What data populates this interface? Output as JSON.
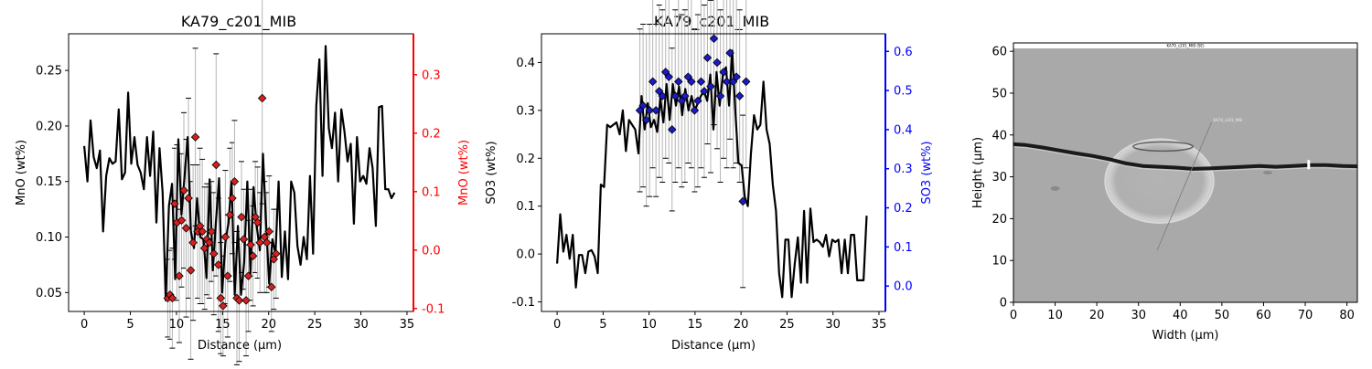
{
  "chart_data": [
    {
      "type": "line",
      "title": "KA79_c201_MIB",
      "xlabel": "Distance (µm)",
      "ylabel": "MnO (wt%)",
      "y2label": "MnO (wt%)",
      "xlim": [
        -1.7,
        35.7
      ],
      "ylim": [
        0.033,
        0.283
      ],
      "y2lim": [
        -0.105,
        0.37
      ],
      "xticks": [
        0,
        5,
        10,
        15,
        20,
        25,
        30,
        35
      ],
      "yticks": [
        0.05,
        0.1,
        0.15,
        0.2,
        0.25
      ],
      "y2ticks": [
        -0.1,
        0.0,
        0.1,
        0.2,
        0.3
      ],
      "line_color": "#000000",
      "marker_color": "#d62020",
      "axis2_color": "#ff0000",
      "line": {
        "x": [
          0,
          0.34,
          0.68,
          1.02,
          1.36,
          1.7,
          2.04,
          2.38,
          2.72,
          3.06,
          3.4,
          3.74,
          4.08,
          4.42,
          4.76,
          5.1,
          5.44,
          5.78,
          6.12,
          6.46,
          6.8,
          7.14,
          7.48,
          7.82,
          8.16,
          8.5,
          8.84,
          9.18,
          9.52,
          9.86,
          10.2,
          10.54,
          10.88,
          11.22,
          11.56,
          11.9,
          12.24,
          12.58,
          12.92,
          13.26,
          13.6,
          13.94,
          14.28,
          14.62,
          14.96,
          15.3,
          15.64,
          15.98,
          16.32,
          16.66,
          17.0,
          17.34,
          17.68,
          18.02,
          18.36,
          18.7,
          19.04,
          19.38,
          19.72,
          20.06,
          20.4,
          20.74,
          21.08,
          21.42,
          21.76,
          22.1,
          22.44,
          22.78,
          23.12,
          23.46,
          23.8,
          24.14,
          24.48,
          24.82,
          25.16,
          25.5,
          25.84,
          26.18,
          26.52,
          26.86,
          27.2,
          27.54,
          27.88,
          28.22,
          28.56,
          28.9,
          29.24,
          29.58,
          29.92,
          30.26,
          30.6,
          30.94,
          31.28,
          31.62,
          31.96,
          32.3,
          32.64,
          32.98,
          33.32,
          33.66
        ],
        "y": [
          0.182,
          0.15,
          0.205,
          0.172,
          0.162,
          0.178,
          0.105,
          0.155,
          0.171,
          0.166,
          0.168,
          0.215,
          0.152,
          0.158,
          0.23,
          0.166,
          0.19,
          0.165,
          0.158,
          0.143,
          0.19,
          0.155,
          0.195,
          0.113,
          0.18,
          0.14,
          0.043,
          0.128,
          0.148,
          0.062,
          0.188,
          0.12,
          0.155,
          0.19,
          0.105,
          0.09,
          0.135,
          0.1,
          0.098,
          0.063,
          0.152,
          0.07,
          0.114,
          0.153,
          0.05,
          0.095,
          0.113,
          0.15,
          0.048,
          0.11,
          0.048,
          0.077,
          0.15,
          0.067,
          0.145,
          0.11,
          0.088,
          0.175,
          0.112,
          0.058,
          0.098,
          0.085,
          0.15,
          0.064,
          0.105,
          0.062,
          0.15,
          0.14,
          0.092,
          0.075,
          0.1,
          0.08,
          0.155,
          0.085,
          0.218,
          0.26,
          0.155,
          0.272,
          0.198,
          0.18,
          0.212,
          0.15,
          0.215,
          0.195,
          0.168,
          0.184,
          0.112,
          0.19,
          0.15,
          0.155,
          0.148,
          0.18,
          0.162,
          0.11,
          0.217,
          0.218,
          0.143,
          0.143,
          0.135,
          0.14
        ]
      },
      "points": {
        "x": [
          9.05,
          9.3,
          9.55,
          9.8,
          10.05,
          10.3,
          10.55,
          10.8,
          11.05,
          11.3,
          11.55,
          11.8,
          12.05,
          12.3,
          12.55,
          12.8,
          13.05,
          13.3,
          13.55,
          13.8,
          14.05,
          14.3,
          14.55,
          14.8,
          15.05,
          15.3,
          15.55,
          15.8,
          16.05,
          16.3,
          16.55,
          16.8,
          17.05,
          17.3,
          17.55,
          17.8,
          18.05,
          18.3,
          18.55,
          18.8,
          19.05,
          19.3,
          19.55,
          19.8,
          20.05,
          20.3,
          20.55,
          20.8
        ],
        "y": [
          0.045,
          0.048,
          0.045,
          0.13,
          0.113,
          0.065,
          0.115,
          0.142,
          0.108,
          0.135,
          0.07,
          0.095,
          0.19,
          0.105,
          0.11,
          0.105,
          0.09,
          0.098,
          0.095,
          0.105,
          0.085,
          0.165,
          0.075,
          0.045,
          0.038,
          0.1,
          0.065,
          0.12,
          0.135,
          0.15,
          0.045,
          0.043,
          0.118,
          0.098,
          0.043,
          0.065,
          0.093,
          0.083,
          0.118,
          0.113,
          0.095,
          0.225,
          0.1,
          0.095,
          0.105,
          0.055,
          0.08,
          0.085
        ],
        "err": [
          0.035,
          0.04,
          0.045,
          0.05,
          0.07,
          0.06,
          0.06,
          0.07,
          0.08,
          0.09,
          0.08,
          0.07,
          0.08,
          0.06,
          0.07,
          0.065,
          0.055,
          0.05,
          0.05,
          0.045,
          0.055,
          0.1,
          0.06,
          0.05,
          0.045,
          0.06,
          0.055,
          0.06,
          0.05,
          0.055,
          0.06,
          0.055,
          0.05,
          0.045,
          0.05,
          0.05,
          0.05,
          0.045,
          0.05,
          0.05,
          0.045,
          0.095,
          0.05,
          0.045,
          0.05,
          0.04,
          0.045,
          0.04
        ]
      }
    },
    {
      "type": "line",
      "title": "KA79_c201_MIB",
      "xlabel": "Distance (µm)",
      "ylabel": "SO3 (wt%)",
      "y2label": "SO3 (wt%)",
      "xlim": [
        -1.7,
        35.7
      ],
      "ylim": [
        -0.12,
        0.46
      ],
      "y2lim": [
        -0.065,
        0.645
      ],
      "xticks": [
        0,
        5,
        10,
        15,
        20,
        25,
        30,
        35
      ],
      "yticks": [
        -0.1,
        0.0,
        0.1,
        0.2,
        0.3,
        0.4
      ],
      "y2ticks": [
        0.0,
        0.1,
        0.2,
        0.3,
        0.4,
        0.5,
        0.6
      ],
      "line_color": "#000000",
      "marker_color": "#1a1ac8",
      "axis2_color": "#0000ff",
      "line": {
        "x": [
          0,
          0.34,
          0.68,
          1.02,
          1.36,
          1.7,
          2.04,
          2.38,
          2.72,
          3.06,
          3.4,
          3.74,
          4.08,
          4.42,
          4.76,
          5.1,
          5.44,
          5.78,
          6.12,
          6.46,
          6.8,
          7.14,
          7.48,
          7.82,
          8.16,
          8.5,
          8.84,
          9.18,
          9.52,
          9.86,
          10.2,
          10.54,
          10.88,
          11.22,
          11.56,
          11.9,
          12.24,
          12.58,
          12.92,
          13.26,
          13.6,
          13.94,
          14.28,
          14.62,
          14.96,
          15.3,
          15.64,
          15.98,
          16.32,
          16.66,
          17.0,
          17.34,
          17.68,
          18.02,
          18.36,
          18.7,
          19.04,
          19.38,
          19.72,
          20.06,
          20.4,
          20.74,
          21.08,
          21.42,
          21.76,
          22.1,
          22.44,
          22.78,
          23.12,
          23.46,
          23.8,
          24.14,
          24.48,
          24.82,
          25.16,
          25.5,
          25.84,
          26.18,
          26.52,
          26.86,
          27.2,
          27.54,
          27.88,
          28.22,
          28.56,
          28.9,
          29.24,
          29.58,
          29.92,
          30.26,
          30.6,
          30.94,
          31.28,
          31.62,
          31.96,
          32.3,
          32.64,
          32.98,
          33.32,
          33.66
        ],
        "y": [
          -0.02,
          0.083,
          0.005,
          0.04,
          -0.01,
          0.04,
          -0.07,
          -0.002,
          -0.002,
          -0.04,
          0.005,
          0.008,
          -0.005,
          -0.04,
          0.145,
          0.14,
          0.27,
          0.265,
          0.27,
          0.275,
          0.25,
          0.3,
          0.215,
          0.28,
          0.27,
          0.26,
          0.21,
          0.33,
          0.26,
          0.315,
          0.265,
          0.28,
          0.255,
          0.325,
          0.275,
          0.355,
          0.28,
          0.355,
          0.31,
          0.35,
          0.29,
          0.345,
          0.3,
          0.33,
          0.3,
          0.315,
          0.33,
          0.34,
          0.32,
          0.375,
          0.26,
          0.38,
          0.31,
          0.375,
          0.39,
          0.31,
          0.425,
          0.3,
          0.19,
          0.185,
          0.12,
          0.1,
          0.21,
          0.29,
          0.26,
          0.27,
          0.36,
          0.26,
          0.23,
          0.145,
          0.09,
          -0.04,
          -0.09,
          0.03,
          0.03,
          -0.09,
          -0.02,
          0.035,
          -0.06,
          0.09,
          -0.06,
          0.095,
          0.025,
          0.03,
          0.025,
          0.015,
          0.04,
          -0.005,
          0.03,
          0.025,
          0.03,
          -0.04,
          0.03,
          -0.04,
          0.04,
          0.04,
          -0.055,
          -0.055,
          -0.055,
          0.08
        ]
      },
      "points": {
        "x": [
          9.0,
          9.35,
          9.7,
          10.05,
          10.4,
          10.75,
          11.1,
          11.45,
          11.8,
          12.15,
          12.5,
          12.85,
          13.2,
          13.55,
          13.9,
          14.25,
          14.6,
          14.95,
          15.3,
          15.65,
          16.0,
          16.35,
          16.7,
          17.05,
          17.4,
          17.75,
          18.1,
          18.45,
          18.8,
          19.15,
          19.5,
          19.85,
          20.2,
          20.55
        ],
        "y": [
          0.3,
          0.31,
          0.28,
          0.3,
          0.36,
          0.3,
          0.34,
          0.33,
          0.38,
          0.37,
          0.26,
          0.33,
          0.36,
          0.32,
          0.33,
          0.37,
          0.36,
          0.3,
          0.32,
          0.36,
          0.34,
          0.41,
          0.35,
          0.45,
          0.4,
          0.33,
          0.38,
          0.36,
          0.42,
          0.36,
          0.37,
          0.33,
          0.11,
          0.36
        ],
        "err": [
          0.17,
          0.17,
          0.18,
          0.18,
          0.18,
          0.18,
          0.18,
          0.18,
          0.18,
          0.18,
          0.17,
          0.18,
          0.18,
          0.18,
          0.18,
          0.18,
          0.18,
          0.17,
          0.18,
          0.18,
          0.18,
          0.18,
          0.18,
          0.18,
          0.18,
          0.18,
          0.18,
          0.18,
          0.18,
          0.18,
          0.18,
          0.18,
          0.18,
          0.18
        ]
      }
    },
    {
      "type": "image",
      "xlabel": "Width (µm)",
      "ylabel": "Height (µm)",
      "xlim": [
        0,
        82.5
      ],
      "ylim": [
        0,
        62
      ],
      "xticks": [
        0,
        10,
        20,
        30,
        40,
        50,
        60,
        70,
        80
      ],
      "yticks": [
        0,
        10,
        20,
        30,
        40,
        50,
        60
      ],
      "image_title": "KA79_c201_MIB (SE)",
      "image_label": "KA79_c201_MIB",
      "background_color": "#a9a9a9",
      "fracture": {
        "x": [
          0,
          3,
          7,
          11,
          15,
          19,
          23,
          27,
          31,
          35,
          39,
          43,
          47,
          51,
          55,
          59,
          63,
          67,
          71,
          75,
          79,
          82.5
        ],
        "y": [
          37.8,
          37.6,
          37.0,
          36.3,
          35.6,
          35.0,
          34.2,
          33.2,
          32.6,
          32.4,
          32.2,
          31.9,
          32.0,
          32.2,
          32.4,
          32.6,
          32.4,
          32.6,
          32.8,
          32.8,
          32.6,
          32.5
        ]
      },
      "inclusion": {
        "cx": 35,
        "cy": 29,
        "rx": 13,
        "ry": 10
      },
      "transect": {
        "x1": 34.5,
        "y1": 12.5,
        "x2": 47.5,
        "y2": 43
      }
    }
  ]
}
